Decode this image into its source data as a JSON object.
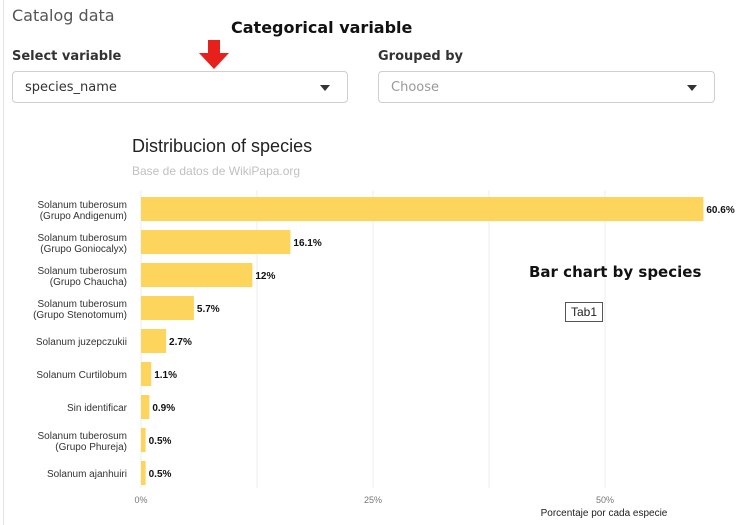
{
  "page": {
    "title": "Catalog data"
  },
  "annotations": {
    "categorical": "Categorical variable",
    "bar_chart": "Bar chart by species",
    "arrow_icon": "down-arrow-icon",
    "arrow_color": "#e8201c"
  },
  "controls": {
    "select_variable": {
      "label": "Select variable",
      "value": "species_name"
    },
    "grouped_by": {
      "label": "Grouped by",
      "placeholder": "Choose"
    }
  },
  "tab_badge": "Tab1",
  "colors": {
    "bar": "#fdd55c",
    "grid": "#ececec"
  },
  "chart_data": {
    "type": "bar",
    "orientation": "horizontal",
    "title": "Distribucion of species",
    "subtitle": "Base de datos de WikiPapa.org",
    "xlabel": "Porcentaje por cada especie",
    "xlim": [
      0,
      62
    ],
    "xticks": [
      "0%",
      "25%",
      "50%"
    ],
    "categories": [
      [
        "Solanum tuberosum",
        "(Grupo Andigenum)"
      ],
      [
        "Solanum tuberosum",
        "(Grupo Goniocalyx)"
      ],
      [
        "Solanum tuberosum",
        "(Grupo Chaucha)"
      ],
      [
        "Solanum tuberosum",
        "(Grupo Stenotomum)"
      ],
      [
        "Solanum juzepczukii"
      ],
      [
        "Solanum Curtilobum"
      ],
      [
        "Sin identificar"
      ],
      [
        "Solanum tuberosum",
        "(Grupo Phureja)"
      ],
      [
        "Solanum ajanhuiri"
      ]
    ],
    "values": [
      60.6,
      16.1,
      12,
      5.7,
      2.7,
      1.1,
      0.9,
      0.5,
      0.5
    ],
    "value_labels": [
      "60.6%",
      "16.1%",
      "12%",
      "5.7%",
      "2.7%",
      "1.1%",
      "0.9%",
      "0.5%",
      "0.5%"
    ]
  }
}
